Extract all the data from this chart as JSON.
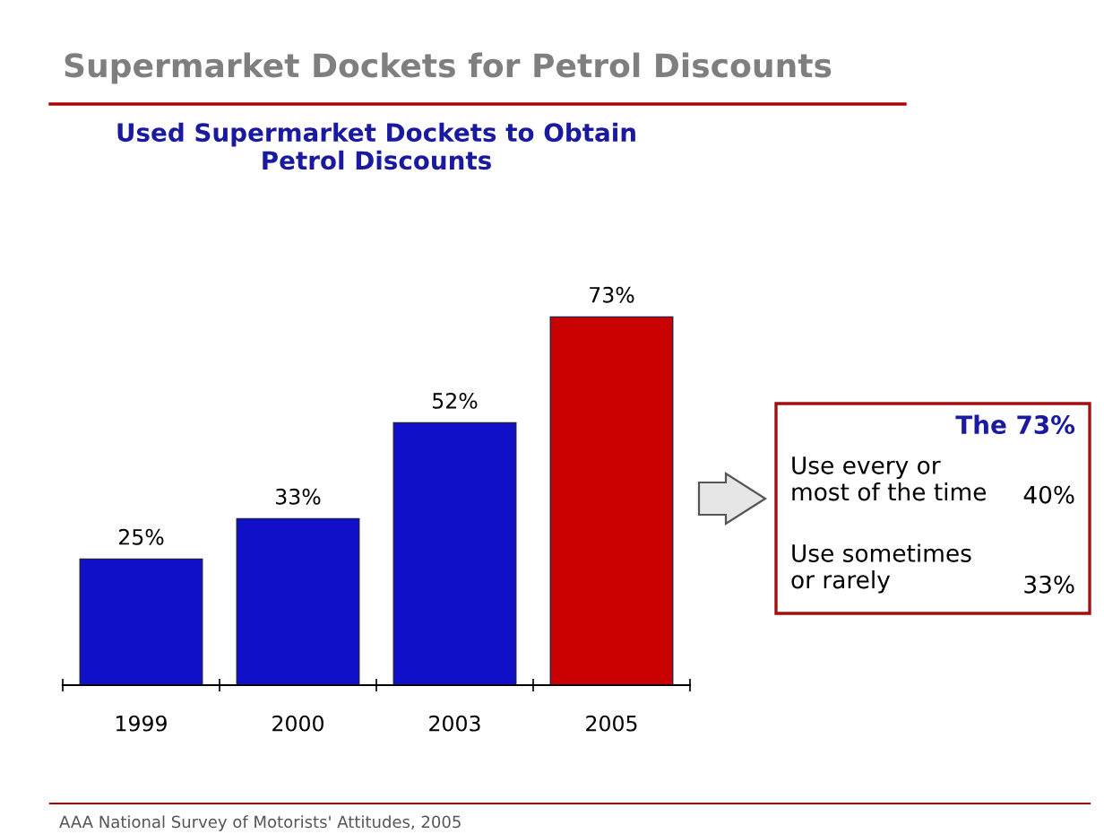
{
  "chart_data": {
    "type": "bar",
    "title": "Supermarket Dockets for Petrol Discounts",
    "subtitle": "Used Supermarket Dockets to Obtain\nPetrol Discounts",
    "categories": [
      "1999",
      "2000",
      "2003",
      "2005"
    ],
    "values": [
      25,
      33,
      52,
      73
    ],
    "colors": [
      "#1010c8",
      "#1010c8",
      "#1010c8",
      "#c80000"
    ],
    "value_labels": [
      "25%",
      "33%",
      "52%",
      "73%"
    ],
    "grid": false,
    "legend": false,
    "tick_labels": "x",
    "annotations": [
      "The 73%",
      "Use every or\nmost of the time",
      "40%",
      "Use sometimes\nor rarely",
      "33%",
      "AAA National Survey of Motorists' Attitudes, 2005"
    ]
  }
}
